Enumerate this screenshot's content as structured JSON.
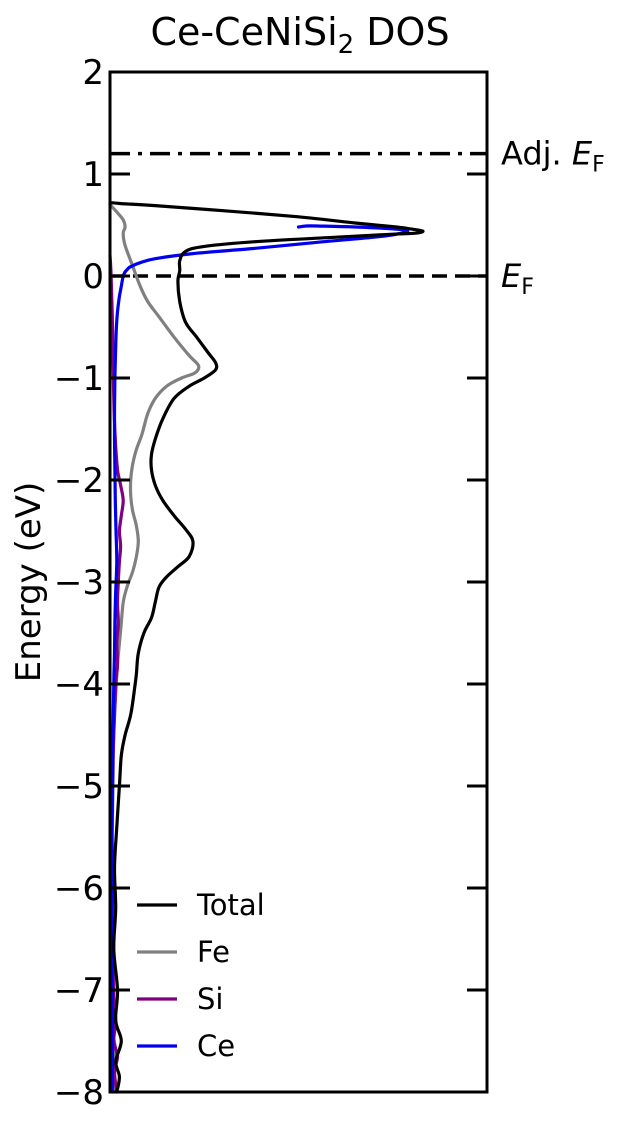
{
  "chart_data": {
    "type": "line",
    "title": "Ce-CeNiSi",
    "title_subscript": "2",
    "title_suffix": " DOS",
    "ylabel": "Energy (eV)",
    "xlabel": "",
    "ylim": [
      -8,
      2
    ],
    "xlim": [
      0,
      1
    ],
    "yticks": [
      2,
      1,
      0,
      -1,
      -2,
      -3,
      -4,
      -5,
      -6,
      -7,
      -8
    ],
    "ytick_labels": [
      "2",
      "1",
      "0",
      "−1",
      "−2",
      "−3",
      "−4",
      "−5",
      "−6",
      "−7",
      "−8"
    ],
    "grid": false,
    "legend_position": "bottom-left",
    "reference_lines": [
      {
        "y": 1.2,
        "style": "dashdot",
        "label_main": "Adj. ",
        "label_italic": "E",
        "label_sub": "F"
      },
      {
        "y": 0.0,
        "style": "dashed",
        "label_main": "",
        "label_italic": "E",
        "label_sub": "F"
      }
    ],
    "series": [
      {
        "name": "Total",
        "color": "#000000",
        "points": [
          [
            0.0,
            0.72
          ],
          [
            0.03,
            0.71
          ],
          [
            0.12,
            0.69
          ],
          [
            0.3,
            0.64
          ],
          [
            0.5,
            0.58
          ],
          [
            0.65,
            0.52
          ],
          [
            0.76,
            0.48
          ],
          [
            0.8,
            0.46
          ],
          [
            0.83,
            0.44
          ],
          [
            0.81,
            0.42
          ],
          [
            0.75,
            0.41
          ],
          [
            0.6,
            0.38
          ],
          [
            0.4,
            0.34
          ],
          [
            0.25,
            0.29
          ],
          [
            0.2,
            0.24
          ],
          [
            0.185,
            0.15
          ],
          [
            0.185,
            0.05
          ],
          [
            0.18,
            -0.05
          ],
          [
            0.185,
            -0.25
          ],
          [
            0.2,
            -0.45
          ],
          [
            0.23,
            -0.6
          ],
          [
            0.26,
            -0.75
          ],
          [
            0.28,
            -0.85
          ],
          [
            0.28,
            -0.92
          ],
          [
            0.25,
            -1.0
          ],
          [
            0.21,
            -1.08
          ],
          [
            0.17,
            -1.2
          ],
          [
            0.14,
            -1.4
          ],
          [
            0.12,
            -1.6
          ],
          [
            0.11,
            -1.75
          ],
          [
            0.11,
            -1.9
          ],
          [
            0.12,
            -2.05
          ],
          [
            0.14,
            -2.2
          ],
          [
            0.17,
            -2.35
          ],
          [
            0.2,
            -2.48
          ],
          [
            0.22,
            -2.6
          ],
          [
            0.21,
            -2.75
          ],
          [
            0.18,
            -2.85
          ],
          [
            0.15,
            -2.95
          ],
          [
            0.13,
            -3.05
          ],
          [
            0.12,
            -3.2
          ],
          [
            0.11,
            -3.35
          ],
          [
            0.09,
            -3.5
          ],
          [
            0.075,
            -3.7
          ],
          [
            0.07,
            -3.9
          ],
          [
            0.065,
            -4.05
          ],
          [
            0.055,
            -4.3
          ],
          [
            0.04,
            -4.5
          ],
          [
            0.03,
            -4.7
          ],
          [
            0.025,
            -5.0
          ],
          [
            0.018,
            -5.4
          ],
          [
            0.012,
            -5.8
          ],
          [
            0.015,
            -6.2
          ],
          [
            0.01,
            -6.6
          ],
          [
            0.02,
            -7.0
          ],
          [
            0.015,
            -7.3
          ],
          [
            0.03,
            -7.5
          ],
          [
            0.015,
            -7.7
          ],
          [
            0.025,
            -7.85
          ],
          [
            0.018,
            -8.0
          ]
        ]
      },
      {
        "name": "Fe",
        "color": "#808080",
        "points": [
          [
            0.0,
            0.7
          ],
          [
            0.02,
            0.62
          ],
          [
            0.035,
            0.55
          ],
          [
            0.04,
            0.48
          ],
          [
            0.035,
            0.42
          ],
          [
            0.04,
            0.3
          ],
          [
            0.06,
            0.1
          ],
          [
            0.08,
            -0.1
          ],
          [
            0.1,
            -0.25
          ],
          [
            0.13,
            -0.4
          ],
          [
            0.17,
            -0.6
          ],
          [
            0.21,
            -0.78
          ],
          [
            0.235,
            -0.88
          ],
          [
            0.225,
            -0.95
          ],
          [
            0.19,
            -1.0
          ],
          [
            0.15,
            -1.08
          ],
          [
            0.12,
            -1.2
          ],
          [
            0.1,
            -1.35
          ],
          [
            0.085,
            -1.55
          ],
          [
            0.07,
            -1.7
          ],
          [
            0.06,
            -1.85
          ],
          [
            0.055,
            -2.0
          ],
          [
            0.055,
            -2.15
          ],
          [
            0.06,
            -2.3
          ],
          [
            0.07,
            -2.45
          ],
          [
            0.075,
            -2.6
          ],
          [
            0.07,
            -2.75
          ],
          [
            0.06,
            -2.9
          ],
          [
            0.045,
            -3.05
          ],
          [
            0.035,
            -3.2
          ],
          [
            0.03,
            -3.4
          ],
          [
            0.025,
            -3.6
          ],
          [
            0.02,
            -3.8
          ],
          [
            0.015,
            -4.1
          ],
          [
            0.01,
            -4.5
          ],
          [
            0.008,
            -5.0
          ],
          [
            0.006,
            -5.5
          ],
          [
            0.008,
            -6.0
          ],
          [
            0.006,
            -6.5
          ],
          [
            0.01,
            -7.0
          ],
          [
            0.008,
            -7.4
          ],
          [
            0.015,
            -7.6
          ],
          [
            0.01,
            -7.8
          ],
          [
            0.012,
            -8.0
          ]
        ]
      },
      {
        "name": "Si",
        "color": "#800080",
        "points": [
          [
            0.0,
            0.2
          ],
          [
            0.003,
            0.0
          ],
          [
            0.006,
            -0.4
          ],
          [
            0.008,
            -0.8
          ],
          [
            0.01,
            -1.2
          ],
          [
            0.014,
            -1.6
          ],
          [
            0.02,
            -1.9
          ],
          [
            0.028,
            -2.05
          ],
          [
            0.035,
            -2.2
          ],
          [
            0.03,
            -2.35
          ],
          [
            0.025,
            -2.5
          ],
          [
            0.028,
            -2.65
          ],
          [
            0.025,
            -2.8
          ],
          [
            0.022,
            -3.0
          ],
          [
            0.02,
            -3.2
          ],
          [
            0.022,
            -3.4
          ],
          [
            0.018,
            -3.6
          ],
          [
            0.02,
            -3.8
          ],
          [
            0.015,
            -4.0
          ],
          [
            0.012,
            -4.3
          ],
          [
            0.008,
            -4.7
          ],
          [
            0.006,
            -5.2
          ],
          [
            0.005,
            -5.6
          ],
          [
            0.007,
            -6.0
          ],
          [
            0.005,
            -6.4
          ],
          [
            0.008,
            -6.8
          ],
          [
            0.01,
            -7.1
          ],
          [
            0.015,
            -7.3
          ],
          [
            0.01,
            -7.5
          ],
          [
            0.02,
            -7.65
          ],
          [
            0.012,
            -7.8
          ],
          [
            0.018,
            -8.0
          ]
        ]
      },
      {
        "name": "Ce",
        "color": "#0000ee",
        "points": [
          [
            0.04,
            0.04
          ],
          [
            0.05,
            0.08
          ],
          [
            0.06,
            0.1
          ],
          [
            0.08,
            0.13
          ],
          [
            0.12,
            0.17
          ],
          [
            0.22,
            0.22
          ],
          [
            0.38,
            0.27
          ],
          [
            0.55,
            0.33
          ],
          [
            0.7,
            0.38
          ],
          [
            0.76,
            0.41
          ],
          [
            0.79,
            0.44
          ],
          [
            0.76,
            0.46
          ],
          [
            0.65,
            0.48
          ],
          [
            0.55,
            0.49
          ],
          [
            0.52,
            0.49
          ],
          [
            0.5,
            0.48
          ]
        ]
      },
      {
        "name": "",
        "color": "#0000ee",
        "points": [
          [
            0.04,
            0.04
          ],
          [
            0.035,
            0.0
          ],
          [
            0.03,
            -0.1
          ],
          [
            0.025,
            -0.2
          ],
          [
            0.02,
            -0.35
          ],
          [
            0.017,
            -0.5
          ],
          [
            0.015,
            -0.7
          ],
          [
            0.013,
            -1.0
          ],
          [
            0.012,
            -1.3
          ],
          [
            0.012,
            -1.6
          ],
          [
            0.013,
            -1.9
          ],
          [
            0.014,
            -2.2
          ],
          [
            0.016,
            -2.5
          ],
          [
            0.018,
            -2.8
          ],
          [
            0.015,
            -3.1
          ],
          [
            0.013,
            -3.4
          ],
          [
            0.012,
            -3.7
          ],
          [
            0.01,
            -4.0
          ],
          [
            0.008,
            -4.5
          ],
          [
            0.006,
            -5.0
          ],
          [
            0.005,
            -5.5
          ],
          [
            0.006,
            -6.0
          ],
          [
            0.005,
            -6.5
          ],
          [
            0.006,
            -7.0
          ],
          [
            0.007,
            -7.5
          ],
          [
            0.006,
            -8.0
          ]
        ]
      }
    ]
  }
}
